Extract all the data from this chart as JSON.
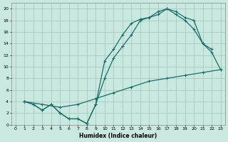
{
  "xlabel": "Humidex (Indice chaleur)",
  "bg_color": "#c8e8e0",
  "grid_color": "#a8c8c0",
  "line_color": "#1a6e6a",
  "xlim": [
    -0.5,
    23.5
  ],
  "ylim": [
    0,
    21
  ],
  "xticks": [
    0,
    1,
    2,
    3,
    4,
    5,
    6,
    7,
    8,
    9,
    10,
    11,
    12,
    13,
    14,
    15,
    16,
    17,
    18,
    19,
    20,
    21,
    22,
    23
  ],
  "yticks": [
    0,
    2,
    4,
    6,
    8,
    10,
    12,
    14,
    16,
    18,
    20
  ],
  "line1_x": [
    1,
    2,
    3,
    4,
    5,
    6,
    7,
    8,
    9,
    10,
    11,
    12,
    13,
    14,
    15,
    16,
    17,
    18,
    19,
    20,
    21,
    22
  ],
  "line1_y": [
    4,
    3.5,
    2.5,
    3.5,
    2.0,
    1.0,
    1.0,
    0.2,
    3.5,
    11,
    13,
    15.5,
    17.5,
    18.2,
    18.5,
    19.0,
    20.0,
    19.5,
    18.5,
    18.0,
    14.0,
    13.0
  ],
  "line2_x": [
    1,
    2,
    3,
    4,
    5,
    6,
    7,
    8,
    9,
    10,
    11,
    12,
    13,
    14,
    15,
    16,
    17,
    18,
    19,
    20,
    21,
    22,
    23
  ],
  "line2_y": [
    4,
    3.5,
    2.5,
    3.5,
    2.0,
    1.0,
    1.0,
    0.2,
    3.5,
    8.0,
    11.5,
    13.5,
    15.5,
    18.0,
    18.5,
    19.5,
    20.0,
    19.0,
    18.0,
    16.5,
    14.0,
    12.5,
    9.5
  ],
  "line3_x": [
    1,
    3,
    5,
    7,
    9,
    11,
    13,
    15,
    17,
    19,
    21,
    23
  ],
  "line3_y": [
    4,
    3.5,
    3.0,
    3.5,
    4.5,
    5.5,
    6.5,
    7.5,
    8.0,
    8.5,
    9.0,
    9.5
  ]
}
